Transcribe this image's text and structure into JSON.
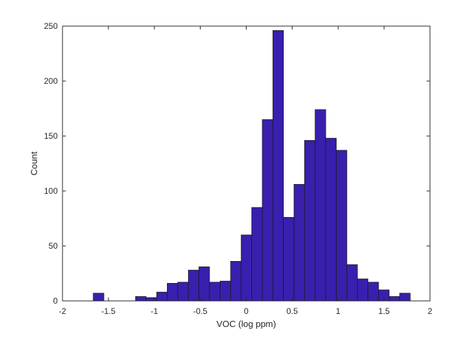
{
  "chart_data": {
    "type": "bar",
    "subtype": "histogram",
    "xlabel": "VOC (log ppm)",
    "ylabel": "Count",
    "xlim": [
      -2,
      2
    ],
    "ylim": [
      0,
      250
    ],
    "xticks": [
      "-2",
      "-1.5",
      "-1",
      "-0.5",
      "0",
      "0.5",
      "1",
      "1.5",
      "2"
    ],
    "yticks": [
      "0",
      "50",
      "100",
      "150",
      "200",
      "250"
    ],
    "grid": false,
    "bar_color": "#3a1fae",
    "bar_edge_color": "#1a1a1a",
    "bins": [
      {
        "start": -1.665,
        "end": -1.55,
        "count": 7
      },
      {
        "start": -1.55,
        "end": -1.435,
        "count": 0
      },
      {
        "start": -1.435,
        "end": -1.32,
        "count": 0
      },
      {
        "start": -1.32,
        "end": -1.205,
        "count": 0
      },
      {
        "start": -1.205,
        "end": -1.09,
        "count": 4
      },
      {
        "start": -1.09,
        "end": -0.975,
        "count": 3
      },
      {
        "start": -0.975,
        "end": -0.86,
        "count": 8
      },
      {
        "start": -0.86,
        "end": -0.745,
        "count": 16
      },
      {
        "start": -0.745,
        "end": -0.63,
        "count": 17
      },
      {
        "start": -0.63,
        "end": -0.515,
        "count": 28
      },
      {
        "start": -0.515,
        "end": -0.4,
        "count": 31
      },
      {
        "start": -0.4,
        "end": -0.285,
        "count": 17
      },
      {
        "start": -0.285,
        "end": -0.17,
        "count": 18
      },
      {
        "start": -0.17,
        "end": -0.055,
        "count": 36
      },
      {
        "start": -0.055,
        "end": 0.06,
        "count": 60
      },
      {
        "start": 0.06,
        "end": 0.175,
        "count": 85
      },
      {
        "start": 0.175,
        "end": 0.29,
        "count": 165
      },
      {
        "start": 0.29,
        "end": 0.405,
        "count": 246
      },
      {
        "start": 0.405,
        "end": 0.52,
        "count": 76
      },
      {
        "start": 0.52,
        "end": 0.635,
        "count": 106
      },
      {
        "start": 0.635,
        "end": 0.75,
        "count": 146
      },
      {
        "start": 0.75,
        "end": 0.865,
        "count": 174
      },
      {
        "start": 0.865,
        "end": 0.98,
        "count": 148
      },
      {
        "start": 0.98,
        "end": 1.095,
        "count": 137
      },
      {
        "start": 1.095,
        "end": 1.21,
        "count": 33
      },
      {
        "start": 1.21,
        "end": 1.325,
        "count": 20
      },
      {
        "start": 1.325,
        "end": 1.44,
        "count": 17
      },
      {
        "start": 1.44,
        "end": 1.555,
        "count": 10
      },
      {
        "start": 1.555,
        "end": 1.67,
        "count": 4
      },
      {
        "start": 1.67,
        "end": 1.785,
        "count": 7
      }
    ]
  }
}
